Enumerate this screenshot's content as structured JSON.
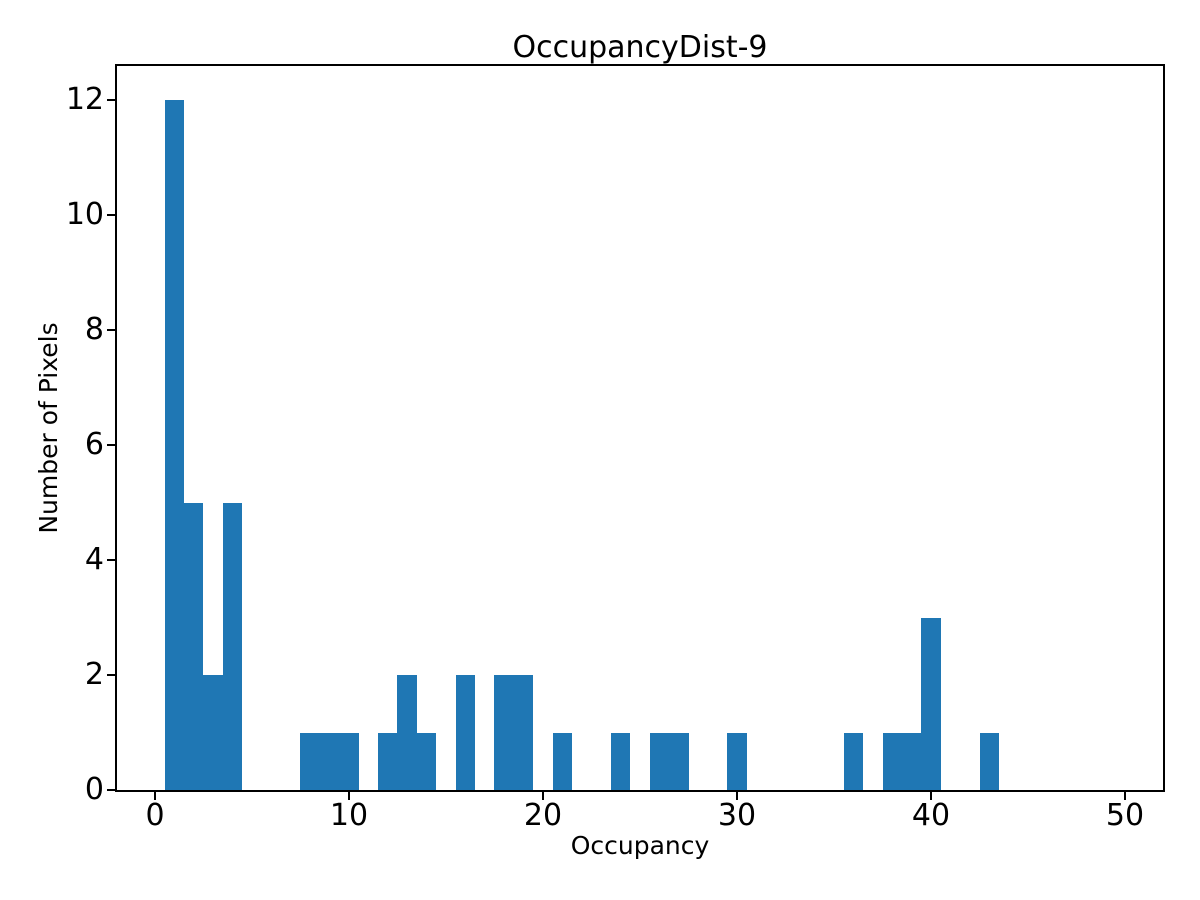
{
  "page": {
    "background": "#ffffff",
    "text_color": "#000000",
    "axis_color": "#000000"
  },
  "chart_data": {
    "type": "bar",
    "title": "OccupancyDist-9",
    "xlabel": "Occupancy",
    "ylabel": "Number of Pixels",
    "bar_color": "#1f77b4",
    "bin_width": 1,
    "occupancy_start": 1,
    "categories_note": "histogram bins centered on integer occupancy values 1..49",
    "counts": [
      12,
      5,
      2,
      5,
      0,
      0,
      0,
      1,
      1,
      1,
      0,
      1,
      2,
      1,
      0,
      2,
      0,
      2,
      2,
      0,
      1,
      0,
      0,
      1,
      0,
      1,
      1,
      0,
      0,
      1,
      0,
      0,
      0,
      0,
      0,
      1,
      0,
      1,
      1,
      3,
      0,
      0,
      1,
      0,
      0,
      0,
      0,
      0,
      0
    ],
    "x_ticks": [
      0,
      10,
      20,
      30,
      40,
      50
    ],
    "y_ticks": [
      0,
      2,
      4,
      6,
      8,
      10,
      12
    ],
    "xlim": [
      -1.95,
      51.95
    ],
    "ylim": [
      0,
      12.6
    ],
    "grid": false,
    "legend": null
  }
}
